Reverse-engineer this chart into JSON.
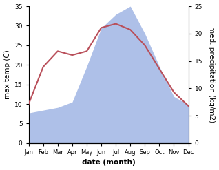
{
  "months": [
    "Jan",
    "Feb",
    "Mar",
    "Apr",
    "May",
    "Jun",
    "Jul",
    "Aug",
    "Sep",
    "Oct",
    "Nov",
    "Dec"
  ],
  "temperature": [
    10.0,
    19.5,
    23.5,
    22.5,
    23.5,
    29.5,
    30.5,
    29.0,
    25.0,
    19.0,
    13.0,
    9.5
  ],
  "precipitation": [
    5.5,
    6.0,
    6.5,
    7.5,
    14.0,
    21.0,
    23.5,
    25.0,
    20.0,
    14.0,
    8.5,
    7.0
  ],
  "temp_color": "#b94f5a",
  "precip_color": "#aec0e8",
  "temp_ylim": [
    0,
    35
  ],
  "precip_ylim": [
    0,
    25
  ],
  "temp_yticks": [
    0,
    5,
    10,
    15,
    20,
    25,
    30,
    35
  ],
  "precip_yticks": [
    0,
    5,
    10,
    15,
    20,
    25
  ],
  "xlabel": "date (month)",
  "ylabel_left": "max temp (C)",
  "ylabel_right": "med. precipitation (kg/m2)",
  "bg_color": "#ffffff",
  "label_fontsize": 7.5,
  "tick_fontsize": 6.5
}
